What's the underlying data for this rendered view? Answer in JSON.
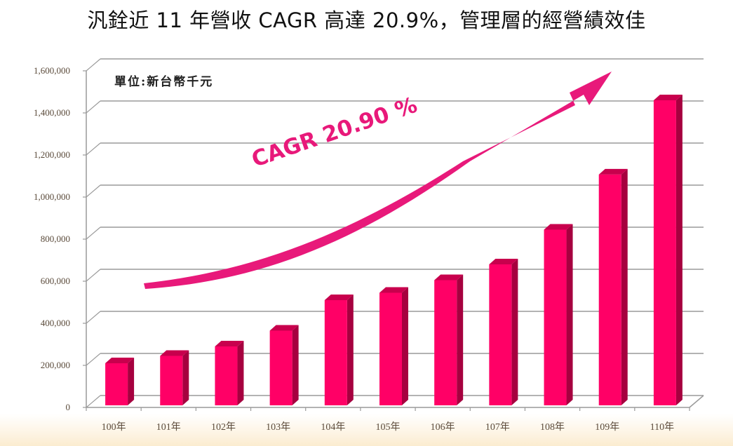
{
  "title": "汎銓近 11 年營收 CAGR 高達 20.9%，管理層的經營績效佳",
  "unit_label": "單位:新台幣千元",
  "annotation": "CAGR 20.90 %",
  "colors": {
    "bar_front": "#ff0066",
    "bar_side": "#a6003f",
    "bar_top": "#c8004d",
    "arrow": "#e8197a",
    "grid": "#9a9a9a",
    "tick_text": "#5a4a3a"
  },
  "y_ticks": [
    "1,600,000",
    "1,400,000",
    "1,200,000",
    "1,000,000",
    "800,000",
    "600,000",
    "400,000",
    "200,000",
    "0"
  ],
  "chart_data": {
    "type": "bar",
    "title": "汎銓近 11 年營收 CAGR 高達 20.9%，管理層的經營績效佳",
    "xlabel": "",
    "ylabel": "單位:新台幣千元",
    "categories": [
      "100年",
      "101年",
      "102年",
      "103年",
      "104年",
      "105年",
      "106年",
      "107年",
      "108年",
      "109年",
      "110年"
    ],
    "values": [
      200000,
      235000,
      280000,
      355000,
      500000,
      535000,
      595000,
      670000,
      835000,
      1097000,
      1450000
    ],
    "ylim": [
      0,
      1600000
    ],
    "y_tick_step": 200000,
    "grid": true,
    "style": "3d-column",
    "legend": "none",
    "annotations": [
      "CAGR 20.90 %",
      "curved upward arrow"
    ]
  }
}
